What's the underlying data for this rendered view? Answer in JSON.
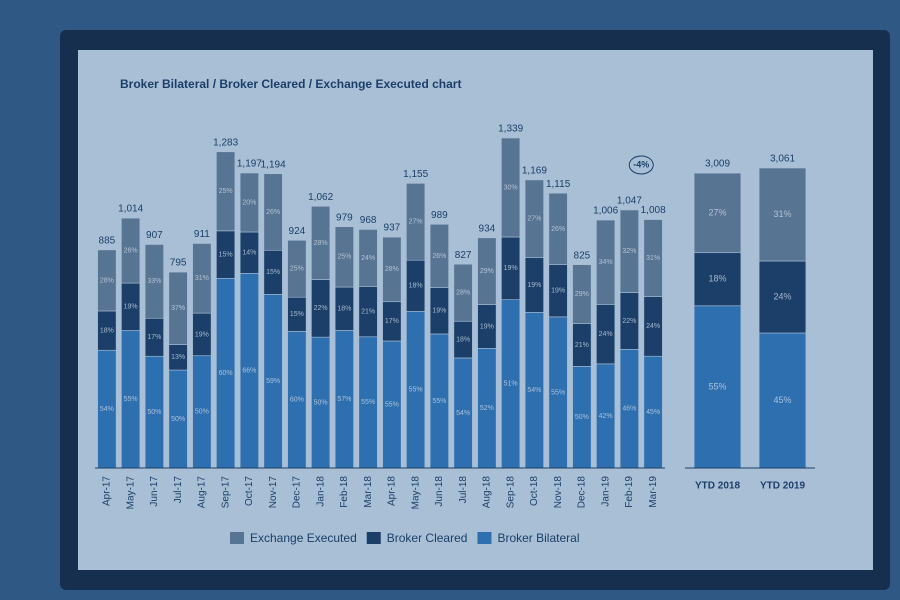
{
  "chart_data": [
    {
      "type": "stacked_bar_percent",
      "title": "Broker Bilateral / Broker Cleared / Exchange Executed chart",
      "categories": [
        "Apr-17",
        "May-17",
        "Jun-17",
        "Jul-17",
        "Aug-17",
        "Sep-17",
        "Oct-17",
        "Nov-17",
        "Dec-17",
        "Jan-18",
        "Feb-18",
        "Mar-18",
        "Apr-18",
        "May-18",
        "Jun-18",
        "Jul-18",
        "Aug-18",
        "Sep-18",
        "Oct-18",
        "Nov-18",
        "Dec-18",
        "Jan-19",
        "Feb-19",
        "Mar-19"
      ],
      "totals": [
        885,
        1014,
        907,
        795,
        911,
        1283,
        1197,
        1194,
        924,
        1062,
        979,
        968,
        937,
        1155,
        989,
        827,
        934,
        1339,
        1169,
        1115,
        825,
        1006,
        1047,
        1008
      ],
      "total_labels": [
        "885",
        "1,014",
        "907",
        "795",
        "911",
        "1,283",
        "1,197",
        "1,194",
        "924",
        "1,062",
        "979",
        "968",
        "937",
        "1,155",
        "989",
        "827",
        "934",
        "1,339",
        "1,169",
        "1,115",
        "825",
        "1,006",
        "1,047",
        "1,008"
      ],
      "series": [
        {
          "name": "Broker Bilateral",
          "color": "#2e6fb0",
          "values": [
            54,
            55,
            50,
            50,
            50,
            60,
            66,
            59,
            60,
            50,
            57,
            55,
            55,
            55,
            55,
            54,
            52,
            51,
            54,
            55,
            50,
            42,
            46,
            45
          ],
          "value_labels": [
            "54%",
            "55%",
            "50%",
            "50%",
            "50%",
            "60%",
            "66%",
            "59%",
            "60%",
            "50%",
            "57%",
            "55%",
            "55%",
            "55%",
            "55%",
            "54%",
            "52%",
            "51%",
            "54%",
            "55%",
            "50%",
            "42%",
            "46%",
            "45%"
          ]
        },
        {
          "name": "Broker Cleared",
          "color": "#1b3f69",
          "values": [
            18,
            19,
            17,
            13,
            19,
            15,
            14,
            15,
            15,
            22,
            18,
            21,
            17,
            18,
            19,
            18,
            19,
            19,
            19,
            19,
            21,
            24,
            22,
            24
          ],
          "value_labels": [
            "18%",
            "19%",
            "17%",
            "13%",
            "19%",
            "15%",
            "14%",
            "15%",
            "15%",
            "22%",
            "18%",
            "21%",
            "17%",
            "18%",
            "19%",
            "18%",
            "19%",
            "19%",
            "19%",
            "19%",
            "21%",
            "24%",
            "22%",
            "24%"
          ]
        },
        {
          "name": "Exchange Executed",
          "color": "#587493",
          "values": [
            28,
            26,
            33,
            37,
            31,
            25,
            20,
            26,
            25,
            28,
            25,
            24,
            28,
            27,
            26,
            28,
            29,
            30,
            27,
            26,
            29,
            34,
            32,
            31
          ],
          "value_labels": [
            "28%",
            "26%",
            "33%",
            "37%",
            "31%",
            "25%",
            "20%",
            "26%",
            "25%",
            "28%",
            "25%",
            "24%",
            "28%",
            "27%",
            "26%",
            "28%",
            "29%",
            "30%",
            "27%",
            "26%",
            "29%",
            "34%",
            "32%",
            "31%"
          ]
        }
      ],
      "annotations": [
        "-4%"
      ]
    },
    {
      "type": "stacked_bar_percent",
      "categories": [
        "YTD 2018",
        "YTD 2019"
      ],
      "totals": [
        3009,
        3061
      ],
      "total_labels": [
        "3,009",
        "3,061"
      ],
      "series": [
        {
          "name": "Broker Bilateral",
          "color": "#2e6fb0",
          "values": [
            55,
            45
          ],
          "value_labels": [
            "55%",
            "45%"
          ]
        },
        {
          "name": "Broker Cleared",
          "color": "#1b3f69",
          "values": [
            18,
            24
          ],
          "value_labels": [
            "18%",
            "24%"
          ]
        },
        {
          "name": "Exchange Executed",
          "color": "#587493",
          "values": [
            27,
            31
          ],
          "value_labels": [
            "27%",
            "31%"
          ]
        }
      ]
    }
  ]
}
